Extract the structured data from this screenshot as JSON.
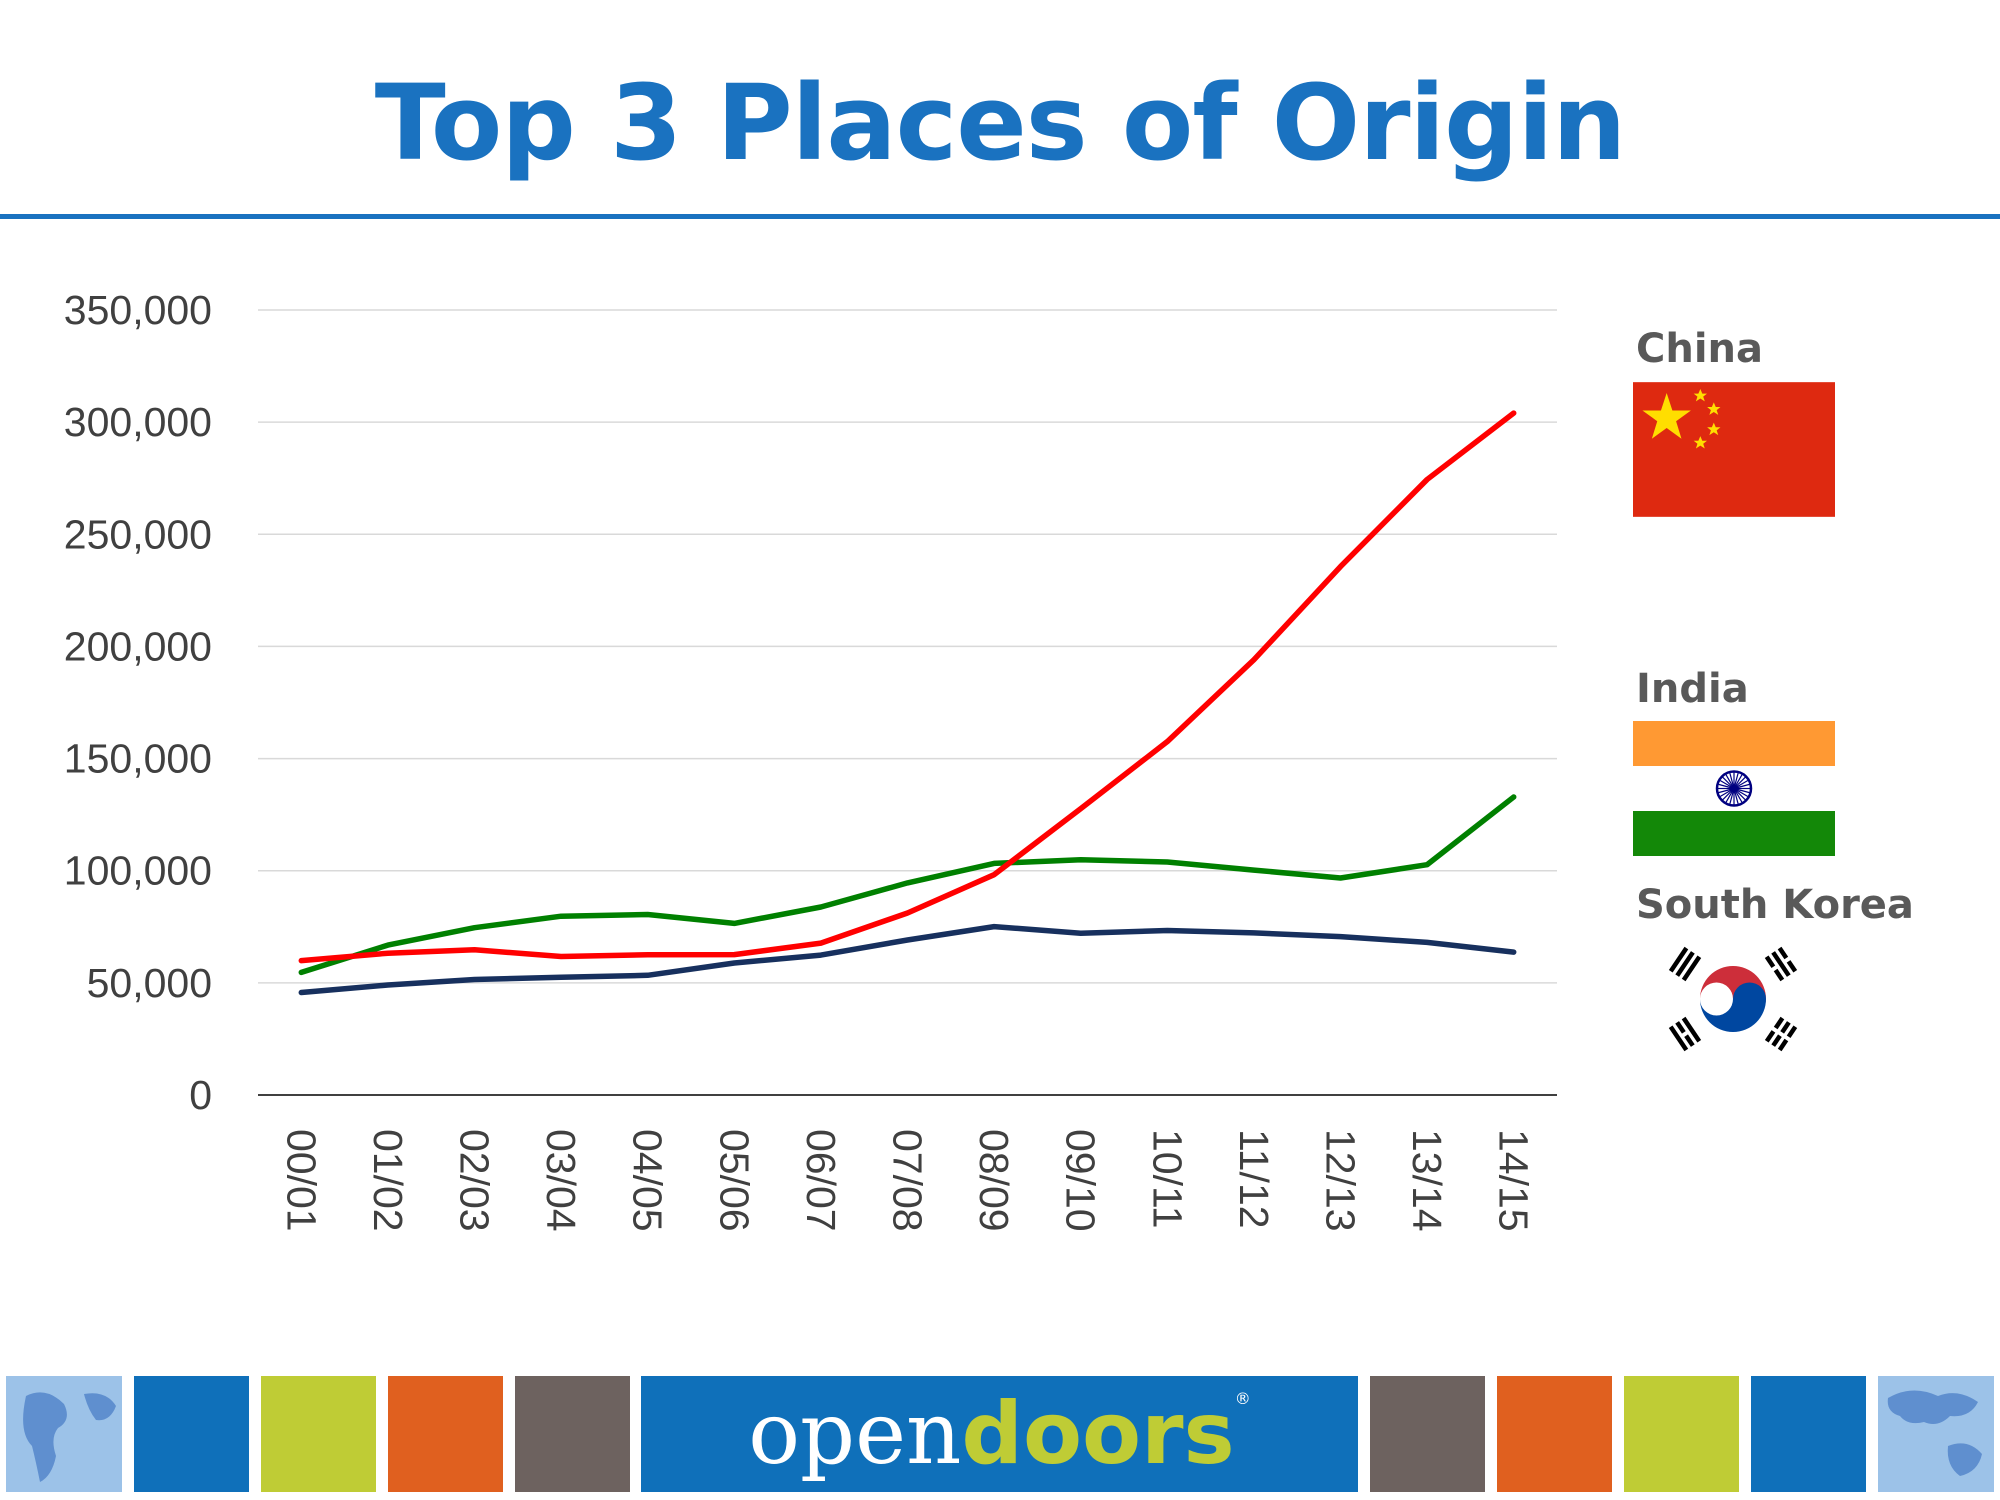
{
  "page": {
    "title": "Top 3 Places of Origin",
    "accent_color": "#1a72c0"
  },
  "chart_data": {
    "type": "line",
    "title": "",
    "xlabel": "",
    "ylabel": "",
    "ylim": [
      0,
      350000
    ],
    "yticks": [
      0,
      50000,
      100000,
      150000,
      200000,
      250000,
      300000,
      350000
    ],
    "ytick_labels": [
      "0",
      "50,000",
      "100,000",
      "150,000",
      "200,000",
      "250,000",
      "300,000",
      "350,000"
    ],
    "grid": true,
    "categories": [
      "00/01",
      "01/02",
      "02/03",
      "03/04",
      "04/05",
      "05/06",
      "06/07",
      "07/08",
      "08/09",
      "09/10",
      "10/11",
      "11/12",
      "12/13",
      "13/14",
      "14/15"
    ],
    "series": [
      {
        "name": "China",
        "color": "#ff0000",
        "values": [
          59939,
          63211,
          64757,
          61765,
          62523,
          62582,
          67723,
          81127,
          98235,
          127628,
          157558,
          194029,
          235597,
          274439,
          304040
        ]
      },
      {
        "name": "India",
        "color": "#008000",
        "values": [
          54664,
          66836,
          74603,
          79736,
          80466,
          76503,
          83833,
          94563,
          103260,
          104897,
          103895,
          100270,
          96754,
          102673,
          132888
        ]
      },
      {
        "name": "South Korea",
        "color": "#17305e",
        "values": [
          45685,
          49046,
          51519,
          52484,
          53358,
          58847,
          62392,
          69124,
          75065,
          72153,
          73351,
          72295,
          70627,
          68047,
          63710
        ]
      }
    ]
  },
  "legend": [
    {
      "label": "China",
      "flag": "china-flag"
    },
    {
      "label": "India",
      "flag": "india-flag"
    },
    {
      "label": "South Korea",
      "flag": "south-korea-flag"
    }
  ],
  "footer": {
    "brand_open": "open",
    "brand_doors": "doors",
    "brand_reg": "®",
    "colors": [
      "#6aa0d8",
      "#0f70ba",
      "#bfcc35",
      "#e0601f",
      "#6d625f",
      "#0f70ba",
      "#6d625f",
      "#e0601f",
      "#bfcc35",
      "#0f70ba",
      "#6aa0d8"
    ]
  }
}
